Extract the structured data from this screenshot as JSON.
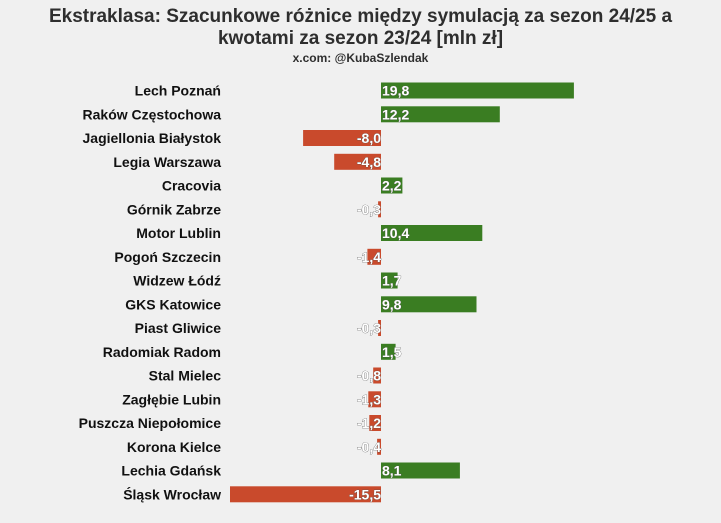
{
  "title_line1": "Ekstraklasa: Szacunkowe różnice między symulacją za sezon 24/25 a",
  "title_line2": "kwotami za sezon 23/24 [mln zł]",
  "subtitle": "x.com: @KubaSzlendak",
  "colors": {
    "positive": "#3a7d22",
    "negative": "#c94a2c",
    "background": "#f0f0f0"
  },
  "chart_data": {
    "type": "bar",
    "orientation": "horizontal",
    "categories": [
      "Lech Poznań",
      "Raków Częstochowa",
      "Jagiellonia Białystok",
      "Legia Warszawa",
      "Cracovia",
      "Górnik Zabrze",
      "Motor Lublin",
      "Pogoń Szczecin",
      "Widzew Łódź",
      "GKS Katowice",
      "Piast Gliwice",
      "Radomiak Radom",
      "Stal Mielec",
      "Zagłębie Lubin",
      "Puszcza Niepołomice",
      "Korona Kielce",
      "Lechia Gdańsk",
      "Śląsk Wrocław"
    ],
    "values": [
      19.8,
      12.2,
      -8.0,
      -4.8,
      2.2,
      -0.3,
      10.4,
      -1.4,
      1.7,
      9.8,
      -0.3,
      1.5,
      -0.8,
      -1.3,
      -1.2,
      -0.4,
      8.1,
      -15.5
    ],
    "value_labels": [
      "19,8",
      "12,2",
      "-8,0",
      "-4,8",
      "2,2",
      "-0,3",
      "10,4",
      "-1,4",
      "1,7",
      "9,8",
      "-0,3",
      "1,5",
      "-0,8",
      "-1,3",
      "-1,2",
      "-0,4",
      "8,1",
      "-15,5"
    ],
    "xlim": [
      -15.5,
      19.8
    ],
    "grid": false
  }
}
